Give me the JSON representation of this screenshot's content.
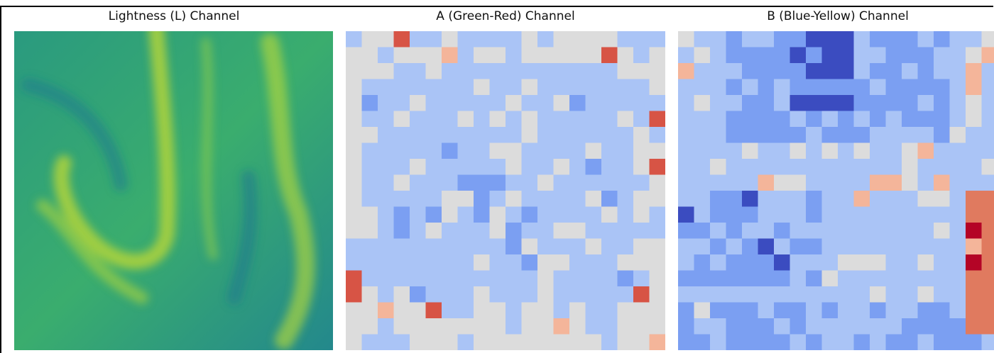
{
  "panels": [
    {
      "title": "Lightness (L) Channel"
    },
    {
      "title": "A (Green-Red) Channel"
    },
    {
      "title": "B (Blue-Yellow) Channel"
    }
  ]
}
